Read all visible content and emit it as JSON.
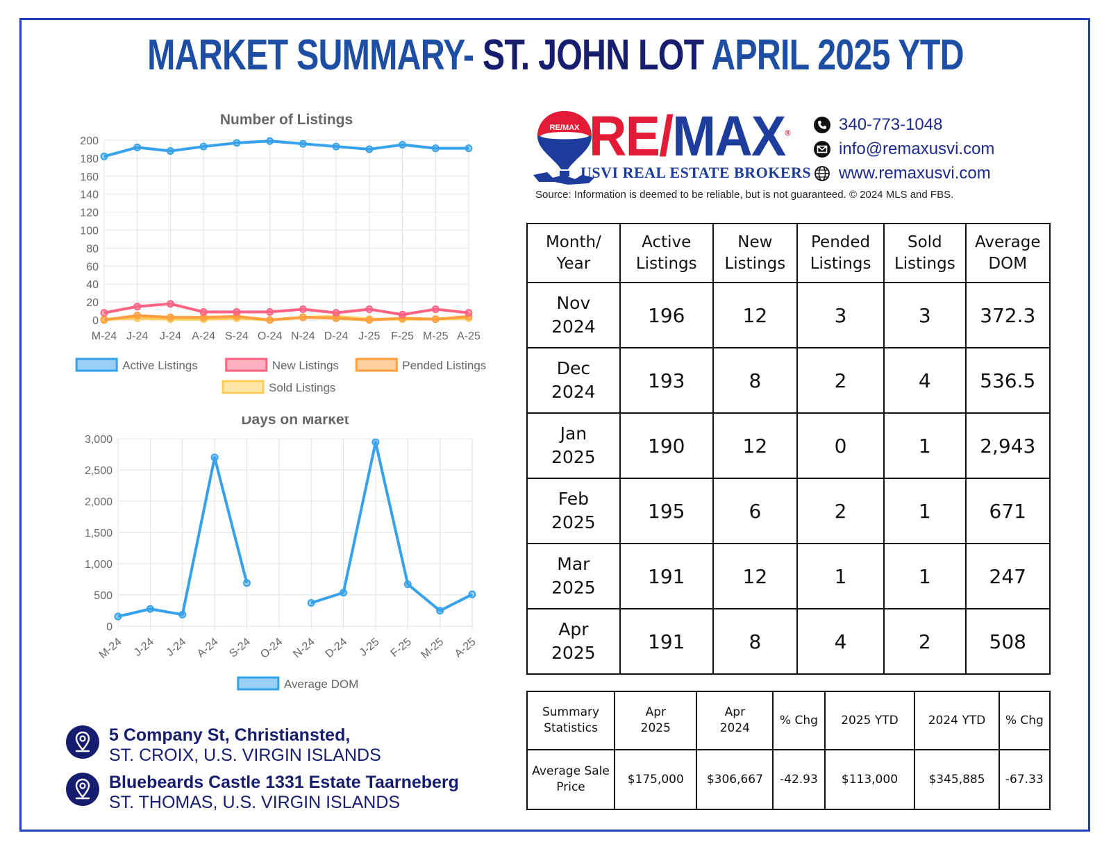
{
  "header": {
    "title_part1": "MARKET SUMMARY- ",
    "title_part2": "ST. JOHN LOT ",
    "title_part3": "APRIL 2025 YTD"
  },
  "brand": {
    "logo_red": "RE/",
    "logo_blue": "MAX",
    "balloon_text": "RE/MAX",
    "subtitle": "USVI REAL ESTATE BROKERS",
    "registered": "®",
    "accent_red": "#e31b36",
    "accent_blue": "#1d3c9b"
  },
  "contacts": [
    {
      "icon": "phone-icon",
      "text": "340-773-1048"
    },
    {
      "icon": "email-icon",
      "text": "info@remaxusvi.com"
    },
    {
      "icon": "globe-icon",
      "text": "www.remaxusvi.com"
    }
  ],
  "source_note": "Source: Information is deemed to be reliable, but is not guaranteed. © 2024 MLS and FBS.",
  "chart_data": [
    {
      "type": "line",
      "title": "Number of Listings",
      "categories": [
        "M-24",
        "J-24",
        "J-24",
        "A-24",
        "S-24",
        "O-24",
        "N-24",
        "D-24",
        "J-25",
        "F-25",
        "M-25",
        "A-25"
      ],
      "ylim": [
        0,
        200
      ],
      "yticks": [
        0,
        20,
        40,
        60,
        80,
        100,
        120,
        140,
        160,
        180,
        200
      ],
      "grid": true,
      "legend_position": "bottom",
      "series": [
        {
          "name": "Active Listings",
          "color": "#36a2eb",
          "values": [
            182,
            192,
            188,
            193,
            197,
            199,
            196,
            193,
            190,
            195,
            191,
            191
          ]
        },
        {
          "name": "New Listings",
          "color": "#ff6384",
          "values": [
            8,
            15,
            18,
            9,
            9,
            9,
            12,
            8,
            12,
            6,
            12,
            8
          ]
        },
        {
          "name": "Pended Listings",
          "color": "#ff9f40",
          "values": [
            0,
            5,
            3,
            3,
            4,
            0,
            3,
            2,
            0,
            2,
            1,
            4
          ]
        },
        {
          "name": "Sold Listings",
          "color": "#ffcd56",
          "values": [
            1,
            2,
            1,
            1,
            2,
            0,
            3,
            4,
            1,
            1,
            1,
            2
          ]
        }
      ]
    },
    {
      "type": "line",
      "title": "Days on Market",
      "categories": [
        "M-24",
        "J-24",
        "J-24",
        "A-24",
        "S-24",
        "O-24",
        "N-24",
        "D-24",
        "J-25",
        "F-25",
        "M-25",
        "A-25"
      ],
      "ylim": [
        0,
        3000
      ],
      "yticks": [
        "0",
        "500",
        "1,000",
        "1,500",
        "2,000",
        "2,500",
        "3,000"
      ],
      "ytick_values": [
        0,
        500,
        1000,
        1500,
        2000,
        2500,
        3000
      ],
      "grid": true,
      "legend_position": "bottom",
      "series": [
        {
          "name": "Average DOM",
          "color": "#36a2eb",
          "values": [
            155,
            275,
            185,
            2700,
            690,
            null,
            372,
            536,
            2943,
            671,
            247,
            508
          ]
        }
      ]
    }
  ],
  "table": {
    "headers": [
      "Month/\nYear",
      "Active\nListings",
      "New\nListings",
      "Pended\nListings",
      "Sold\nListings",
      "Average\nDOM"
    ],
    "rows": [
      [
        "Nov\n2024",
        "196",
        "12",
        "3",
        "3",
        "372.3"
      ],
      [
        "Dec\n2024",
        "193",
        "8",
        "2",
        "4",
        "536.5"
      ],
      [
        "Jan\n2025",
        "190",
        "12",
        "0",
        "1",
        "2,943"
      ],
      [
        "Feb\n2025",
        "195",
        "6",
        "2",
        "1",
        "671"
      ],
      [
        "Mar\n2025",
        "191",
        "12",
        "1",
        "1",
        "247"
      ],
      [
        "Apr\n2025",
        "191",
        "8",
        "4",
        "2",
        "508"
      ]
    ]
  },
  "summary": {
    "headers": [
      "Summary\nStatistics",
      "Apr\n2025",
      "Apr\n2024",
      "% Chg",
      "2025 YTD",
      "2024 YTD",
      "% Chg"
    ],
    "rows": [
      [
        "Average Sale\nPrice",
        "$175,000",
        "$306,667",
        "-42.93",
        "$113,000",
        "$345,885",
        "-67.33"
      ]
    ]
  },
  "addresses": [
    {
      "line1": "5 Company St, Christiansted,",
      "line2": "ST. CROIX, U.S. VIRGIN ISLANDS"
    },
    {
      "line1": "Bluebeards Castle 1331 Estate Taarneberg",
      "line2": "ST. THOMAS, U.S. VIRGIN ISLANDS"
    }
  ]
}
